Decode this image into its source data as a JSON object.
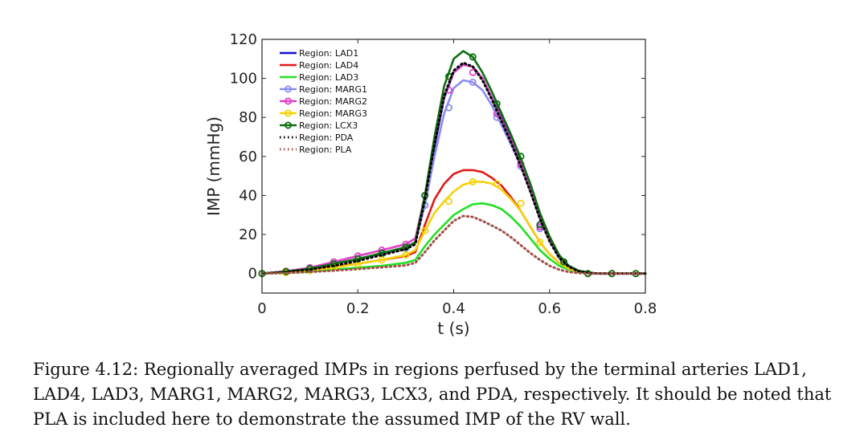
{
  "caption": "Figure 4.12: Regionally averaged IMPs in regions perfused by the terminal arteries LAD1, LAD4, LAD3, MARG1, MARG2, MARG3, LCX3, and PDA, respectively. It should be noted that PLA is included here to demonstrate the assumed IMP of the RV wall.",
  "chart_data": {
    "type": "line",
    "title": "",
    "xlabel": "t (s)",
    "ylabel": "IMP (mmHg)",
    "xlim": [
      0,
      0.8
    ],
    "ylim": [
      -10,
      120
    ],
    "xticks": [
      0,
      0.2,
      0.4,
      0.6,
      0.8
    ],
    "xtick_labels": [
      "0",
      "0.2",
      "0.4",
      "0.6",
      "0.8"
    ],
    "yticks": [
      0,
      20,
      40,
      60,
      80,
      100,
      120
    ],
    "ytick_labels": [
      "0",
      "20",
      "40",
      "60",
      "80",
      "100",
      "120"
    ],
    "grid": false,
    "legend_position": "top-left",
    "series": [
      {
        "name": "Region: LAD1",
        "color": "#1010c8",
        "style": "solid",
        "marker": "none",
        "x": [
          0,
          0.05,
          0.1,
          0.15,
          0.2,
          0.25,
          0.3,
          0.32,
          0.34,
          0.36,
          0.38,
          0.4,
          0.42,
          0.44,
          0.46,
          0.48,
          0.5,
          0.52,
          0.54,
          0.56,
          0.58,
          0.6,
          0.62,
          0.64,
          0.66,
          0.68,
          0.7,
          0.75,
          0.8
        ],
        "y": [
          0,
          1,
          2.5,
          5,
          7.5,
          10,
          13,
          16,
          40,
          65,
          90,
          103,
          107,
          106,
          100,
          90,
          80,
          70,
          58,
          45,
          30,
          18,
          9,
          4,
          1.5,
          0.5,
          0,
          0,
          0
        ]
      },
      {
        "name": "Region: LAD4",
        "color": "#e01818",
        "style": "solid",
        "marker": "none",
        "x": [
          0,
          0.05,
          0.1,
          0.15,
          0.2,
          0.25,
          0.3,
          0.32,
          0.34,
          0.36,
          0.38,
          0.4,
          0.42,
          0.44,
          0.46,
          0.48,
          0.5,
          0.52,
          0.54,
          0.56,
          0.58,
          0.6,
          0.62,
          0.64,
          0.66,
          0.68,
          0.7,
          0.75,
          0.8
        ],
        "y": [
          0,
          0.5,
          2,
          3.5,
          5,
          7,
          9,
          11,
          25,
          38,
          46,
          51,
          53,
          53,
          52,
          49,
          45,
          39,
          32,
          24,
          16,
          10,
          5.5,
          2.5,
          1,
          0.3,
          0,
          0,
          0
        ]
      },
      {
        "name": "Region: LAD3",
        "color": "#22e022",
        "style": "solid",
        "marker": "none",
        "x": [
          0,
          0.05,
          0.1,
          0.15,
          0.2,
          0.25,
          0.3,
          0.32,
          0.34,
          0.36,
          0.38,
          0.4,
          0.42,
          0.44,
          0.46,
          0.48,
          0.5,
          0.52,
          0.54,
          0.56,
          0.58,
          0.6,
          0.62,
          0.64,
          0.66,
          0.68,
          0.7,
          0.75,
          0.8
        ],
        "y": [
          0,
          0.3,
          1,
          2,
          3,
          4,
          5.5,
          7,
          14,
          20,
          25,
          30,
          33,
          35.5,
          36,
          35,
          33,
          29,
          24,
          18,
          12,
          7.5,
          4,
          2,
          0.8,
          0.2,
          0,
          0,
          0
        ]
      },
      {
        "name": "Region: MARG1",
        "color": "#8c8cf0",
        "style": "solid",
        "marker": "circle",
        "x": [
          0,
          0.05,
          0.1,
          0.15,
          0.2,
          0.25,
          0.3,
          0.32,
          0.34,
          0.36,
          0.38,
          0.4,
          0.42,
          0.44,
          0.46,
          0.48,
          0.5,
          0.52,
          0.54,
          0.56,
          0.58,
          0.6,
          0.62,
          0.64,
          0.66,
          0.68,
          0.7,
          0.75,
          0.8
        ],
        "y": [
          0,
          1,
          2.5,
          5,
          7.5,
          10,
          13,
          16,
          35,
          60,
          82,
          95,
          99,
          98,
          94,
          86,
          76,
          66,
          55,
          42,
          28,
          17,
          8,
          3.5,
          1.2,
          0.4,
          0,
          0,
          0
        ],
        "marker_x": [
          0,
          0.05,
          0.1,
          0.15,
          0.2,
          0.25,
          0.3,
          0.34,
          0.39,
          0.44,
          0.49,
          0.54,
          0.58,
          0.63,
          0.68,
          0.73,
          0.78
        ],
        "marker_y": [
          0,
          1,
          2.5,
          5,
          7.5,
          10,
          13,
          35,
          85,
          98,
          80,
          55,
          23,
          5.5,
          0,
          0,
          0
        ]
      },
      {
        "name": "Region: MARG2",
        "color": "#e040c8",
        "style": "solid",
        "marker": "circle",
        "x": [
          0,
          0.05,
          0.1,
          0.15,
          0.2,
          0.25,
          0.3,
          0.32,
          0.34,
          0.36,
          0.38,
          0.4,
          0.42,
          0.44,
          0.46,
          0.48,
          0.5,
          0.52,
          0.54,
          0.56,
          0.58,
          0.6,
          0.62,
          0.64,
          0.66,
          0.68,
          0.7,
          0.75,
          0.8
        ],
        "y": [
          0,
          1.2,
          3,
          6,
          9,
          12,
          15,
          18,
          40,
          68,
          91,
          103,
          107,
          106,
          100,
          90,
          79,
          68,
          56,
          43,
          29,
          17,
          8.5,
          3.5,
          1.2,
          0.4,
          0,
          0,
          0
        ],
        "marker_x": [
          0,
          0.05,
          0.1,
          0.15,
          0.2,
          0.25,
          0.3,
          0.34,
          0.39,
          0.44,
          0.49,
          0.54,
          0.58,
          0.63,
          0.68,
          0.73,
          0.78
        ],
        "marker_y": [
          0,
          1.2,
          3,
          6,
          9,
          12,
          15,
          40,
          94,
          103,
          82,
          56,
          24,
          5.5,
          0,
          0,
          0
        ]
      },
      {
        "name": "Region: MARG3",
        "color": "#f5d20a",
        "style": "solid",
        "marker": "circle",
        "x": [
          0,
          0.05,
          0.1,
          0.15,
          0.2,
          0.25,
          0.3,
          0.32,
          0.34,
          0.36,
          0.38,
          0.4,
          0.42,
          0.44,
          0.46,
          0.48,
          0.5,
          0.52,
          0.54,
          0.56,
          0.58,
          0.6,
          0.62,
          0.64,
          0.66,
          0.68,
          0.7,
          0.75,
          0.8
        ],
        "y": [
          0,
          0.5,
          1.5,
          3,
          5,
          7,
          9.5,
          12,
          22,
          31,
          37,
          42,
          45.5,
          47,
          47,
          46,
          43,
          38,
          32,
          24,
          16,
          10,
          5.5,
          2.5,
          1,
          0.3,
          0,
          0,
          0
        ],
        "marker_x": [
          0,
          0.05,
          0.1,
          0.15,
          0.2,
          0.25,
          0.3,
          0.34,
          0.39,
          0.44,
          0.49,
          0.54,
          0.58,
          0.63,
          0.68,
          0.73,
          0.78
        ],
        "marker_y": [
          0,
          0.5,
          1.5,
          3,
          5,
          7,
          9.5,
          22,
          37,
          47,
          46,
          36,
          16,
          5.5,
          0,
          0,
          0
        ]
      },
      {
        "name": "Region: LCX3",
        "color": "#0e6e0e",
        "style": "solid",
        "marker": "circle",
        "x": [
          0,
          0.05,
          0.1,
          0.15,
          0.2,
          0.25,
          0.3,
          0.32,
          0.34,
          0.36,
          0.38,
          0.4,
          0.42,
          0.44,
          0.46,
          0.48,
          0.5,
          0.52,
          0.54,
          0.56,
          0.58,
          0.6,
          0.62,
          0.64,
          0.66,
          0.68,
          0.7,
          0.75,
          0.8
        ],
        "y": [
          0,
          1,
          2.5,
          5,
          7.5,
          10.5,
          13.5,
          16,
          40,
          70,
          96,
          110,
          114,
          111,
          103,
          93,
          82,
          71,
          59,
          46,
          31,
          19,
          9.5,
          4,
          1.5,
          0.5,
          0,
          0,
          0
        ],
        "marker_x": [
          0,
          0.05,
          0.1,
          0.15,
          0.2,
          0.25,
          0.3,
          0.34,
          0.39,
          0.44,
          0.49,
          0.54,
          0.58,
          0.63,
          0.68,
          0.73,
          0.78
        ],
        "marker_y": [
          0,
          1,
          2.5,
          5,
          7.5,
          10.5,
          13.5,
          40,
          101,
          111,
          87,
          60,
          25,
          6,
          0,
          0,
          0
        ]
      },
      {
        "name": "Region: PDA",
        "color": "#000000",
        "style": "dotted",
        "marker": "none",
        "x": [
          0,
          0.05,
          0.1,
          0.15,
          0.2,
          0.25,
          0.3,
          0.32,
          0.34,
          0.36,
          0.38,
          0.4,
          0.42,
          0.44,
          0.46,
          0.48,
          0.5,
          0.52,
          0.54,
          0.56,
          0.58,
          0.6,
          0.62,
          0.64,
          0.66,
          0.68,
          0.7,
          0.75,
          0.8
        ],
        "y": [
          0,
          0.8,
          2,
          4,
          6.5,
          9.5,
          12.5,
          15,
          38,
          66,
          91,
          104,
          108,
          106,
          99,
          89,
          78,
          67,
          55,
          42,
          28,
          16.5,
          8,
          3.5,
          1.2,
          0.4,
          0,
          0,
          0
        ]
      },
      {
        "name": "Region: PLA",
        "color": "#a0504a",
        "style": "dotted",
        "marker": "none",
        "x": [
          0,
          0.05,
          0.1,
          0.15,
          0.2,
          0.25,
          0.3,
          0.32,
          0.34,
          0.36,
          0.38,
          0.4,
          0.42,
          0.44,
          0.46,
          0.48,
          0.5,
          0.52,
          0.54,
          0.56,
          0.58,
          0.6,
          0.62,
          0.64,
          0.66,
          0.68,
          0.7,
          0.75,
          0.8
        ],
        "y": [
          0,
          0.3,
          0.8,
          1.5,
          2.3,
          3.2,
          4.2,
          5.5,
          11,
          17,
          22,
          27,
          29.5,
          29,
          27,
          24.5,
          22,
          18.5,
          14.5,
          10.5,
          7,
          4,
          2,
          0.8,
          0.3,
          0,
          0,
          0,
          0
        ]
      }
    ]
  }
}
